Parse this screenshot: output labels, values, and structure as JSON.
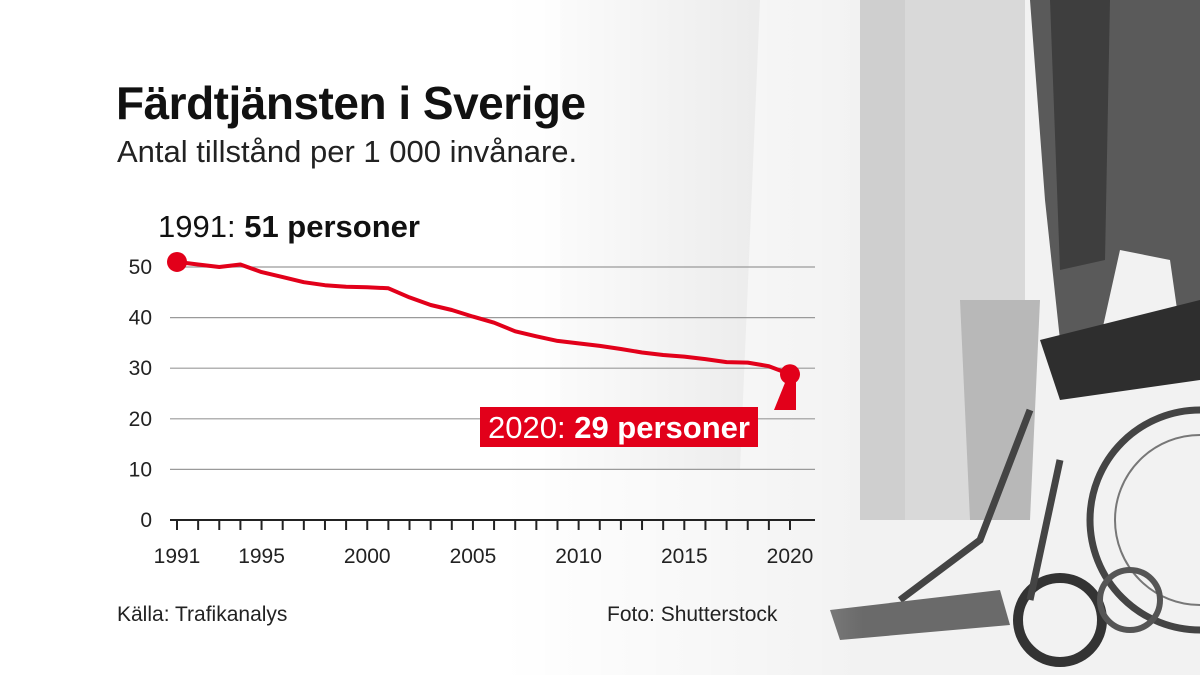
{
  "title": "Färdtjänsten i Sverige",
  "subtitle": "Antal tillstånd per 1 000 invånare.",
  "callouts": {
    "start_prefix": "1991:",
    "start_value": "51 personer",
    "end_prefix": "2020:",
    "end_value": "29 personer"
  },
  "source": "Källa: Trafikanalys",
  "photo_credit": "Foto: Shutterstock",
  "colors": {
    "line": "#e2001a",
    "grid": "#9a9a9a",
    "text": "#222222"
  },
  "chart_data": {
    "type": "line",
    "title": "Färdtjänsten i Sverige",
    "subtitle": "Antal tillstånd per 1 000 invånare.",
    "xlabel": "",
    "ylabel": "",
    "xlim": [
      1991,
      2020
    ],
    "ylim": [
      0,
      50
    ],
    "x_ticks": [
      1991,
      1995,
      2000,
      2005,
      2010,
      2015,
      2020
    ],
    "y_ticks": [
      0,
      10,
      20,
      30,
      40,
      50
    ],
    "grid": true,
    "x": [
      1991,
      1992,
      1993,
      1994,
      1995,
      1996,
      1997,
      1998,
      1999,
      2000,
      2001,
      2002,
      2003,
      2004,
      2005,
      2006,
      2007,
      2008,
      2009,
      2010,
      2011,
      2012,
      2013,
      2014,
      2015,
      2016,
      2017,
      2018,
      2019,
      2020
    ],
    "values": [
      51.0,
      50.5,
      50.0,
      50.5,
      49.0,
      48.0,
      47.0,
      46.4,
      46.1,
      46.0,
      45.8,
      44.0,
      42.5,
      41.5,
      40.2,
      39.0,
      37.3,
      36.3,
      35.4,
      34.9,
      34.4,
      33.8,
      33.1,
      32.6,
      32.3,
      31.8,
      31.2,
      31.1,
      30.4,
      28.8
    ],
    "highlighted_points": [
      {
        "x": 1991,
        "y": 51,
        "label": "1991: 51 personer"
      },
      {
        "x": 2020,
        "y": 29,
        "label": "2020: 29 personer"
      }
    ]
  }
}
